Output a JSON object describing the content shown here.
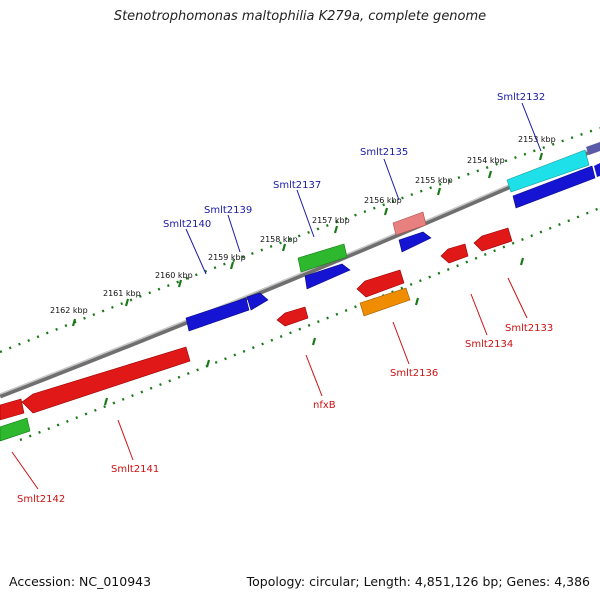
{
  "header": {
    "title": "Stenotrophomonas maltophilia K279a, complete genome"
  },
  "footer": {
    "accession": "Accession: NC_010943",
    "summary": "Topology: circular; Length: 4,851,126 bp; Genes: 4,386"
  },
  "scale": {
    "ticks": [
      "2162 kbp",
      "2161 kbp",
      "2160 kbp",
      "2159 kbp",
      "2158 kbp",
      "2157 kbp",
      "2156 kbp",
      "2155 kbp",
      "2154 kbp",
      "2153 kbp"
    ]
  },
  "genes": {
    "forward_labels": [
      "Smlt2140",
      "Smlt2139",
      "Smlt2137",
      "Smlt2135",
      "Smlt2132"
    ],
    "reverse_labels": [
      "Smlt2142",
      "Smlt2141",
      "nfxB",
      "Smlt2136",
      "Smlt2134",
      "Smlt2133"
    ]
  },
  "colors": {
    "backbone": "#8a8a8a",
    "tick": "#1a7a1a",
    "forward_gene": "#1414d2",
    "reverse_gene": "#e01818",
    "green_gene": "#2eb82e",
    "cyan_gene": "#1ee0e8",
    "orange_gene": "#f08c00",
    "pink_gene": "#e88080",
    "label_blue": "#1a1aa6",
    "label_red": "#cc1111"
  }
}
